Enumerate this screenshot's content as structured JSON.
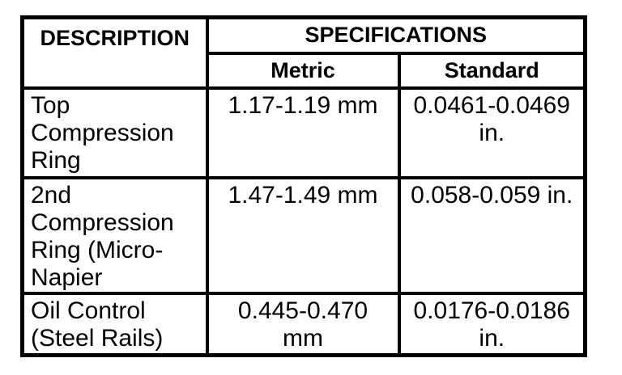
{
  "table": {
    "header": {
      "description": "DESCRIPTION",
      "specifications": "SPECIFICATIONS",
      "metric": "Metric",
      "standard": "Standard"
    },
    "rows": [
      {
        "description": "Top Compression Ring",
        "metric": "1.17-1.19 mm",
        "standard": "0.0461-0.0469 in."
      },
      {
        "description": "2nd Compression Ring (Micro-Napier",
        "metric": "1.47-1.49 mm",
        "standard": "0.058-0.059 in."
      },
      {
        "description": "Oil Control (Steel Rails)",
        "metric": "0.445-0.470 mm",
        "standard": "0.0176-0.0186 in."
      }
    ],
    "colors": {
      "border": "#000000",
      "text": "#000000",
      "background": "#ffffff"
    }
  }
}
